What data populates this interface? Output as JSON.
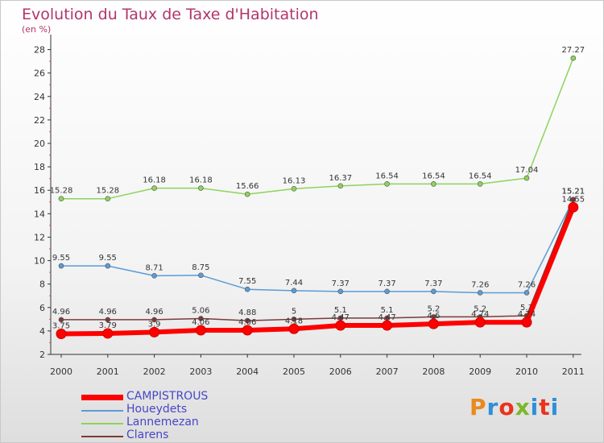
{
  "title": "Evolution du Taux de Taxe d'Habitation",
  "subtitle": "(en %)",
  "logo": {
    "text": "Proxiti",
    "colors": [
      "#e88a1d",
      "#2f8fd8",
      "#e8341c",
      "#7bb82b",
      "#2f8fd8",
      "#e8341c",
      "#2f8fd8"
    ]
  },
  "chart_data": {
    "type": "line",
    "x": [
      "2000",
      "2001",
      "2002",
      "2003",
      "2004",
      "2005",
      "2006",
      "2007",
      "2008",
      "2009",
      "2010",
      "2011"
    ],
    "ylim": [
      2,
      29
    ],
    "yticks": [
      2,
      4,
      6,
      8,
      10,
      12,
      14,
      16,
      18,
      20,
      22,
      24,
      26,
      28
    ],
    "xlabel": "",
    "ylabel": "",
    "grid": false,
    "legend_position": "bottom-left",
    "series": [
      {
        "name": "CAMPISTROUS",
        "color": "#ff0000",
        "values": [
          3.75,
          3.79,
          3.9,
          4.06,
          4.06,
          4.18,
          4.47,
          4.47,
          4.6,
          4.74,
          4.74,
          14.55
        ],
        "labels": [
          "3.75",
          "3.79",
          "3.9",
          "4.06",
          "4.06",
          "4.18",
          "4.47",
          "4.47",
          "4.6",
          "4.74",
          "4.74",
          "14.55"
        ]
      },
      {
        "name": "Houeydets",
        "color": "#5b9bd5",
        "values": [
          9.55,
          9.55,
          8.71,
          8.75,
          7.55,
          7.44,
          7.37,
          7.37,
          7.37,
          7.26,
          7.26,
          15.21
        ],
        "labels": [
          "9.55",
          "9.55",
          "8.71",
          "8.75",
          "7.55",
          "7.44",
          "7.37",
          "7.37",
          "7.37",
          "7.26",
          "7.26",
          "15.21"
        ]
      },
      {
        "name": "Lannemezan",
        "color": "#8ed35b",
        "values": [
          15.28,
          15.28,
          16.18,
          16.18,
          15.66,
          16.13,
          16.37,
          16.54,
          16.54,
          16.54,
          17.04,
          27.27
        ],
        "labels": [
          "15.28",
          "15.28",
          "16.18",
          "16.18",
          "15.66",
          "16.13",
          "16.37",
          "16.54",
          "16.54",
          "16.54",
          "17.04",
          "27.27"
        ]
      },
      {
        "name": "Clarens",
        "color": "#7a3b3b",
        "values": [
          4.96,
          4.96,
          4.96,
          5.06,
          4.88,
          5,
          5.1,
          5.1,
          5.2,
          5.2,
          5.3,
          15.21
        ],
        "labels": [
          "4.96",
          "4.96",
          "4.96",
          "5.06",
          "4.88",
          "5",
          "5.1",
          "5.1",
          "5.2",
          "5.2",
          "5.3",
          "15.21"
        ]
      }
    ]
  }
}
